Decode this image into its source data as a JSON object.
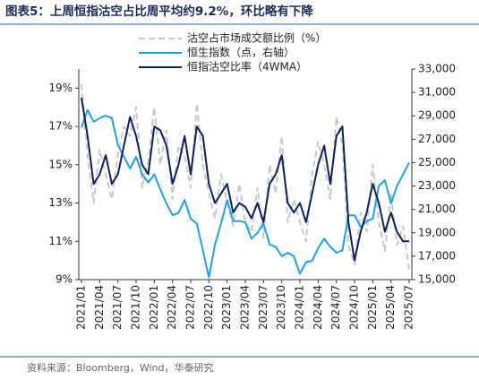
{
  "chart_data": {
    "type": "line",
    "title": "图表5：上周恒指沽空占比周平均约9.2%，环比略有下降",
    "source": "资料来源：Bloomberg，Wind，华泰研究",
    "categories": [
      "2021/01",
      null,
      null,
      "2021/04",
      null,
      null,
      "2021/07",
      null,
      null,
      "2021/10",
      null,
      null,
      "2022/01",
      null,
      null,
      "2022/04",
      null,
      null,
      "2022/07",
      null,
      null,
      "2022/10",
      null,
      null,
      "2023/01",
      null,
      null,
      "2023/04",
      null,
      null,
      "2023/07",
      null,
      null,
      "2023/10",
      null,
      null,
      "2024/01",
      null,
      null,
      "2024/04",
      null,
      null,
      "2024/07",
      null,
      null,
      "2024/10",
      null,
      null,
      "2025/01",
      null,
      null,
      "2025/04",
      null,
      null,
      "2025/07"
    ],
    "ylim": [
      9,
      20
    ],
    "yticks": [
      {
        "value": 9,
        "label": "9%"
      },
      {
        "value": 11,
        "label": "11%"
      },
      {
        "value": 13,
        "label": "13%"
      },
      {
        "value": 15,
        "label": "15%"
      },
      {
        "value": 17,
        "label": "17%"
      },
      {
        "value": 19,
        "label": "19%"
      }
    ],
    "y2lim": [
      15000,
      33000
    ],
    "y2ticks": [
      {
        "value": 15000,
        "label": "15,000"
      },
      {
        "value": 17000,
        "label": "17,000"
      },
      {
        "value": 19000,
        "label": "19,000"
      },
      {
        "value": 21000,
        "label": "21,000"
      },
      {
        "value": 23000,
        "label": "23,000"
      },
      {
        "value": 25000,
        "label": "25,000"
      },
      {
        "value": 27000,
        "label": "27,000"
      },
      {
        "value": 29000,
        "label": "29,000"
      },
      {
        "value": 31000,
        "label": "31,000"
      },
      {
        "value": 33000,
        "label": "33,000"
      }
    ],
    "legend": "top",
    "series": [
      {
        "name": "沽空占市场成交额比例（%）",
        "color": "#c8c8c8",
        "dashed": true,
        "values": [
          19.2,
          15.5,
          13.0,
          15.8,
          14.5,
          13.2,
          15.5,
          17.0,
          16.5,
          18.0,
          13.8,
          15.2,
          18.0,
          15.0,
          16.8,
          13.2,
          16.0,
          15.5,
          13.8,
          18.2,
          15.0,
          13.5,
          12.2,
          14.5,
          13.0,
          11.8,
          14.0,
          12.0,
          11.5,
          13.8,
          11.2,
          15.0,
          13.5,
          16.5,
          12.0,
          13.2,
          12.0,
          11.0,
          14.5,
          16.2,
          15.0,
          13.2,
          17.5,
          16.0,
          10.8,
          9.8,
          12.5,
          11.5,
          15.0,
          12.0,
          10.5,
          13.5,
          10.8,
          11.8,
          9.5
        ]
      },
      {
        "name": "恒生指数（点，右轴）",
        "color": "#1fa3e6",
        "axis": "y2",
        "values": [
          28000,
          29500,
          28500,
          28800,
          29000,
          28800,
          26500,
          25500,
          24500,
          25500,
          24000,
          23300,
          24000,
          22700,
          21500,
          20500,
          20700,
          21800,
          20200,
          19800,
          17500,
          15200,
          18000,
          19800,
          21800,
          20000,
          20000,
          19900,
          18500,
          19000,
          19800,
          18000,
          17800,
          17000,
          17300,
          17000,
          15500,
          16500,
          16600,
          17700,
          18500,
          17800,
          17300,
          17500,
          20500,
          20500,
          19500,
          20000,
          20200,
          23000,
          23500,
          21500,
          23000,
          24000,
          25000
        ]
      },
      {
        "name": "恒指沽空比率（4WMA）",
        "color": "#0d1f5c",
        "values": [
          18.5,
          16.5,
          14.0,
          14.5,
          15.5,
          14.0,
          14.5,
          16.0,
          17.5,
          16.5,
          15.0,
          14.5,
          17.0,
          16.8,
          16.0,
          14.0,
          15.0,
          16.5,
          14.5,
          17.0,
          16.5,
          14.0,
          13.0,
          13.5,
          14.0,
          12.5,
          13.0,
          12.8,
          12.2,
          13.0,
          12.0,
          14.0,
          14.5,
          15.5,
          13.0,
          12.5,
          13.0,
          12.0,
          13.5,
          15.0,
          16.0,
          14.0,
          16.5,
          17.0,
          12.0,
          10.0,
          11.5,
          12.5,
          14.0,
          13.0,
          11.5,
          12.5,
          11.5,
          11.0,
          11.0
        ]
      }
    ]
  }
}
